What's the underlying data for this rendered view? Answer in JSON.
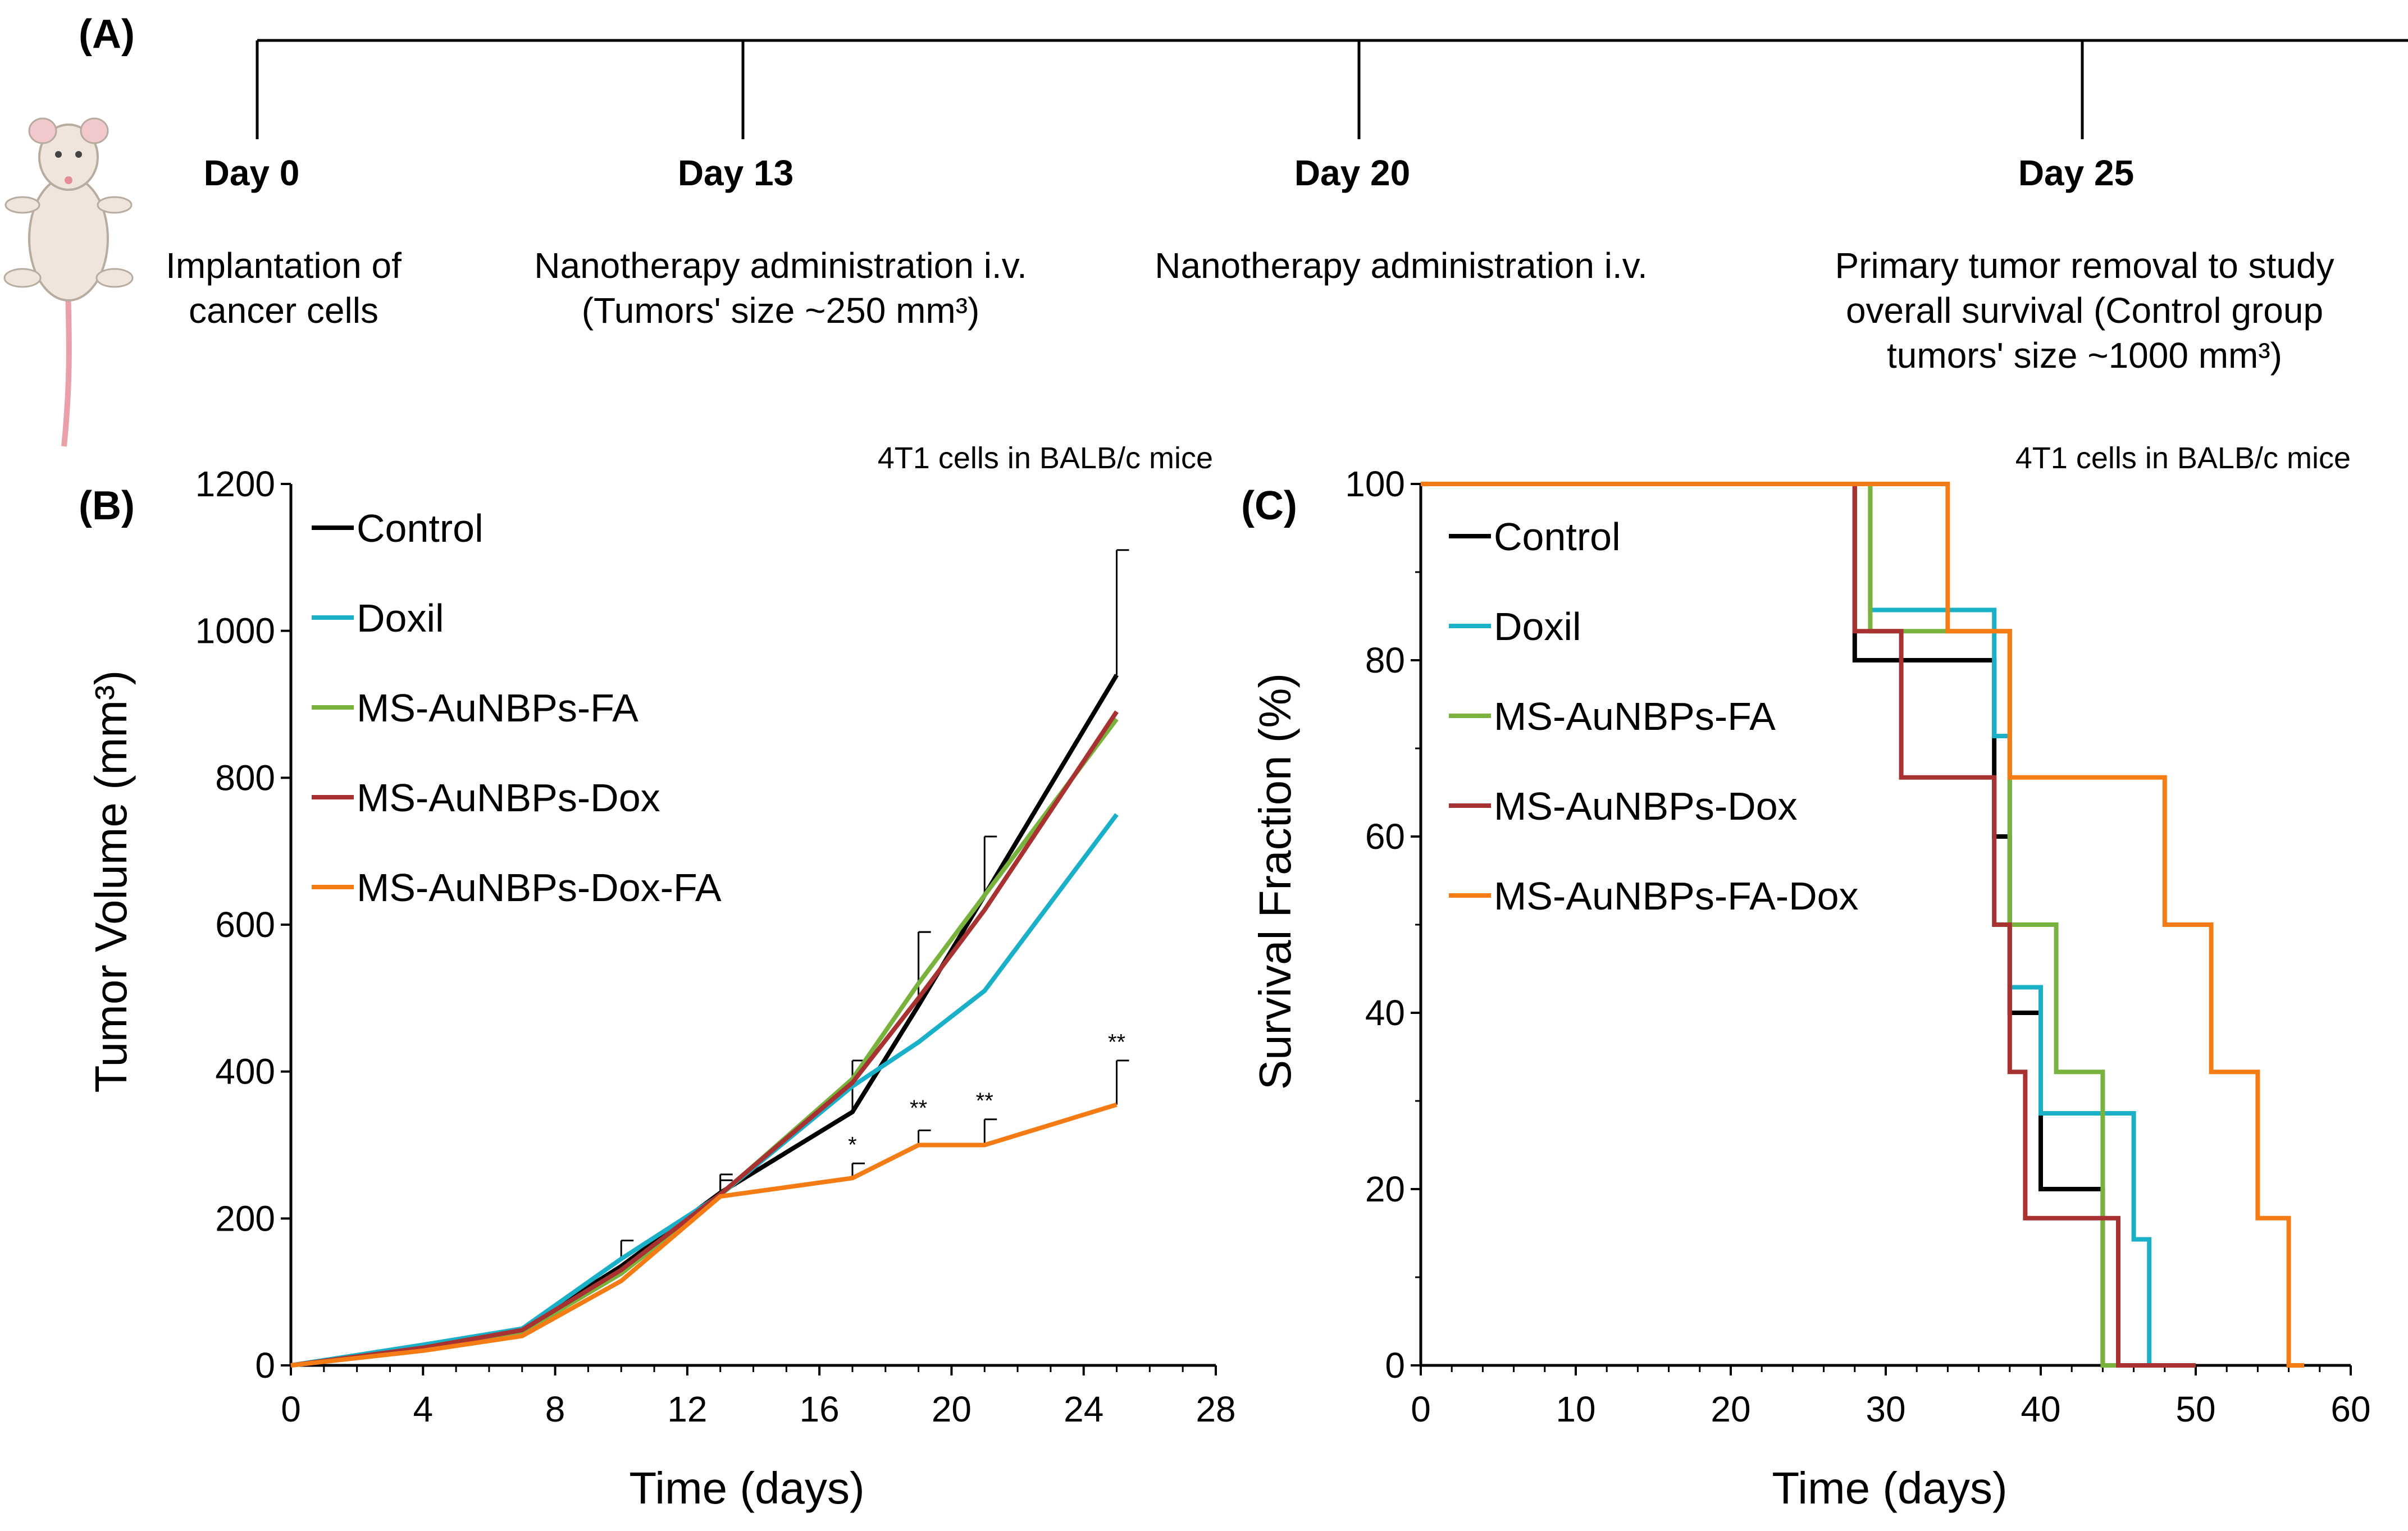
{
  "panel_a": {
    "label": "(A)",
    "events": [
      {
        "day": "Day 0",
        "lines": [
          "Implantation of",
          "cancer cells"
        ]
      },
      {
        "day": "Day 13",
        "lines": [
          "Nanotherapy administration i.v.",
          "(Tumors' size ~250 mm³)"
        ]
      },
      {
        "day": "Day 20",
        "lines": [
          "Nanotherapy administration i.v."
        ]
      },
      {
        "day": "Day 25",
        "lines": [
          "Primary tumor removal to study",
          "overall survival (Control group",
          "tumors' size ~1000 mm³)"
        ]
      }
    ],
    "mouse_icon": "mouse-icon"
  },
  "chart_data": [
    {
      "panel_label": "(B)",
      "type": "line",
      "title": "4T1 cells in BALB/c mice",
      "xlabel": "Time (days)",
      "ylabel": "Tumor Volume (mm³)",
      "xlim": [
        0,
        28
      ],
      "ylim": [
        0,
        1200
      ],
      "xticks": [
        0,
        4,
        8,
        12,
        16,
        20,
        24,
        28
      ],
      "yticks": [
        0,
        200,
        400,
        600,
        800,
        1000,
        1200
      ],
      "series": [
        {
          "name": "Control",
          "color": "#000000",
          "x": [
            0,
            4,
            7,
            10,
            13,
            17,
            19,
            21,
            25
          ],
          "y": [
            0,
            25,
            50,
            135,
            235,
            345,
            490,
            640,
            940
          ],
          "err": [
            0,
            0,
            0,
            0,
            25,
            70,
            100,
            80,
            170
          ]
        },
        {
          "name": "Doxil",
          "color": "#1ab0c8",
          "x": [
            0,
            4,
            7,
            10,
            13,
            17,
            19,
            21,
            25
          ],
          "y": [
            0,
            28,
            50,
            145,
            232,
            380,
            440,
            510,
            750
          ],
          "err": [
            0,
            0,
            0,
            25,
            20,
            0,
            0,
            0,
            0
          ]
        },
        {
          "name": "MS-AuNBPs-FA",
          "color": "#79b33d",
          "x": [
            0,
            4,
            7,
            10,
            13,
            17,
            19,
            21,
            25
          ],
          "y": [
            0,
            22,
            45,
            125,
            232,
            390,
            520,
            640,
            880
          ],
          "err": [
            0,
            0,
            0,
            0,
            0,
            0,
            70,
            0,
            0
          ]
        },
        {
          "name": "MS-AuNBPs-Dox",
          "color": "#a83232",
          "x": [
            0,
            4,
            7,
            10,
            13,
            17,
            19,
            21,
            25
          ],
          "y": [
            0,
            24,
            48,
            130,
            233,
            385,
            500,
            620,
            890
          ],
          "err": [
            0,
            0,
            0,
            0,
            0,
            0,
            0,
            0,
            0
          ]
        },
        {
          "name": "MS-AuNBPs-Dox-FA",
          "color": "#f57c14",
          "x": [
            0,
            4,
            7,
            10,
            13,
            17,
            19,
            21,
            25
          ],
          "y": [
            0,
            20,
            40,
            115,
            230,
            255,
            300,
            300,
            355
          ],
          "err": [
            0,
            0,
            0,
            0,
            0,
            20,
            20,
            35,
            60
          ]
        }
      ],
      "error_color": "#000000",
      "annotations": [
        {
          "x": 17,
          "y": 290,
          "text": "*"
        },
        {
          "x": 19,
          "y": 340,
          "text": "**"
        },
        {
          "x": 21,
          "y": 350,
          "text": "**"
        },
        {
          "x": 25,
          "y": 430,
          "text": "**"
        }
      ],
      "legend_position": "top-left"
    },
    {
      "panel_label": "(C)",
      "type": "line",
      "subtype": "step",
      "title": "4T1 cells in BALB/c mice",
      "xlabel": "Time (days)",
      "ylabel": "Survival Fraction (%)",
      "xlim": [
        0,
        60
      ],
      "ylim": [
        0,
        100
      ],
      "xticks": [
        0,
        10,
        20,
        30,
        40,
        50,
        60
      ],
      "yticks": [
        0,
        20,
        40,
        60,
        80,
        100
      ],
      "series": [
        {
          "name": "Control",
          "color": "#000000",
          "x": [
            0,
            28,
            37,
            38,
            40,
            44,
            45
          ],
          "y": [
            100,
            80,
            60,
            40,
            20,
            0,
            0
          ]
        },
        {
          "name": "Doxil",
          "color": "#1ab0c8",
          "x": [
            0,
            28,
            29,
            37,
            38,
            40,
            46,
            47,
            50
          ],
          "y": [
            100,
            100,
            85.7,
            71.4,
            42.9,
            28.6,
            14.3,
            0,
            0
          ]
        },
        {
          "name": "MS-AuNBPs-FA",
          "color": "#79b33d",
          "x": [
            0,
            29,
            38,
            41,
            44,
            45
          ],
          "y": [
            100,
            83.3,
            50,
            33.3,
            0,
            0
          ]
        },
        {
          "name": "MS-AuNBPs-Dox",
          "color": "#a83232",
          "x": [
            0,
            28,
            31,
            37,
            38,
            39,
            45,
            50
          ],
          "y": [
            100,
            83.3,
            66.7,
            50,
            33.3,
            16.7,
            0,
            0
          ]
        },
        {
          "name": "MS-AuNBPs-FA-Dox",
          "color": "#f57c14",
          "x": [
            0,
            34,
            38,
            48,
            51,
            54,
            56,
            57
          ],
          "y": [
            100,
            83.3,
            66.7,
            50,
            33.3,
            16.7,
            0,
            0
          ]
        }
      ],
      "legend_position": "top-left"
    }
  ]
}
